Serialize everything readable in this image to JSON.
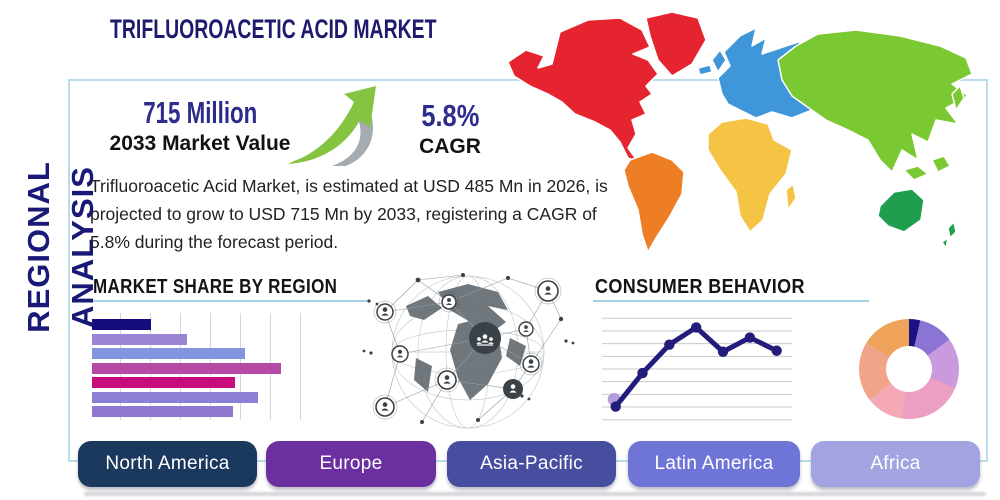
{
  "header": {
    "title": "TRIFLUOROACETIC ACID MARKET",
    "vertical_label": "REGIONAL ANALYSIS"
  },
  "stats": {
    "market_value": "715 Million",
    "market_value_caption": "2033 Market Value",
    "cagr_value": "5.8%",
    "cagr_caption": "CAGR",
    "description": "Trifluoroacetic Acid Market, is estimated at USD 485 Mn in 2026, is projected to grow to USD 715 Mn by 2033, registering a CAGR of 5.8% during the forecast period."
  },
  "chart_data": [
    {
      "type": "bar",
      "title": "MARKET SHARE BY REGION",
      "orientation": "horizontal",
      "categories": [
        "",
        "",
        "",
        "",
        "",
        "",
        ""
      ],
      "values_pct": [
        28,
        45,
        73,
        90,
        68,
        79,
        67
      ],
      "bar_colors": [
        "#150d7d",
        "#9c84d4",
        "#8295de",
        "#b54aa4",
        "#c90c7c",
        "#8b7fd6",
        "#9077cf"
      ],
      "xlim": [
        0,
        100
      ],
      "grid": "vertical",
      "labels_shown": false
    },
    {
      "type": "line",
      "title": "CONSUMER BEHAVIOR",
      "x": [
        1,
        2,
        3,
        4,
        5,
        6,
        7
      ],
      "values": [
        13,
        46,
        74,
        91,
        67,
        81,
        68
      ],
      "ylim": [
        0,
        100
      ],
      "grid": "horizontal",
      "gridline_count": 9,
      "line_color": "#221d7a",
      "first_point_halo_color": "#b39ddb",
      "labels_shown": false
    },
    {
      "type": "pie",
      "style": "donut",
      "title": "",
      "segments": [
        {
          "color": "#191280",
          "pct": 3.6
        },
        {
          "color": "#8b74d4",
          "pct": 11.4
        },
        {
          "color": "#c99ade",
          "pct": 16.1
        },
        {
          "color": "#ec9ec3",
          "pct": 21.1
        },
        {
          "color": "#f5a8b5",
          "pct": 12.2
        },
        {
          "color": "#f2a489",
          "pct": 19.4
        },
        {
          "color": "#efa35a",
          "pct": 16.2
        }
      ]
    }
  ],
  "map": {
    "regions": [
      {
        "name": "North America",
        "color": "#e62430"
      },
      {
        "name": "South America",
        "color": "#ed7e23"
      },
      {
        "name": "Europe",
        "color": "#3f97d9"
      },
      {
        "name": "Africa",
        "color": "#f6c445"
      },
      {
        "name": "Asia",
        "color": "#7ac832"
      },
      {
        "name": "Australia & Oceania",
        "color": "#1f9e4d"
      }
    ]
  },
  "region_buttons": [
    {
      "label": "North America",
      "color": "#1b395c"
    },
    {
      "label": "Europe",
      "color": "#6b2fa0"
    },
    {
      "label": "Asia-Pacific",
      "color": "#474d9f"
    },
    {
      "label": "Latin America",
      "color": "#6f75d6"
    },
    {
      "label": "Africa",
      "color": "#a2a3e0"
    }
  ]
}
